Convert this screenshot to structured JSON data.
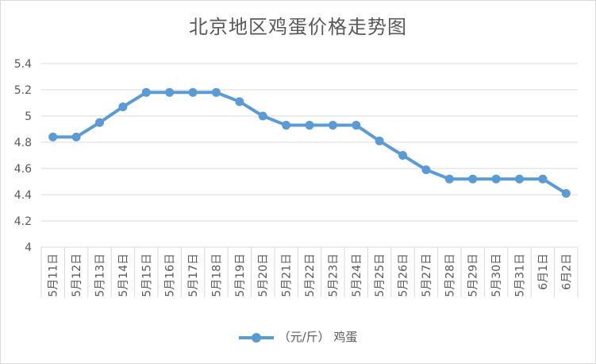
{
  "chart_data": {
    "type": "line",
    "title": "北京地区鸡蛋价格走势图",
    "categories": [
      "5月11日",
      "5月12日",
      "5月13日",
      "5月14日",
      "5月15日",
      "5月16日",
      "5月17日",
      "5月18日",
      "5月19日",
      "5月20日",
      "5月21日",
      "5月22日",
      "5月23日",
      "5月24日",
      "5月25日",
      "5月26日",
      "5月27日",
      "5月28日",
      "5月29日",
      "5月30日",
      "5月31日",
      "6月1日",
      "6月2日"
    ],
    "series": [
      {
        "name": "（元/斤） 鸡蛋",
        "values": [
          4.84,
          4.84,
          4.95,
          5.07,
          5.18,
          5.18,
          5.18,
          5.18,
          5.11,
          5.0,
          4.93,
          4.93,
          4.93,
          4.93,
          4.81,
          4.7,
          4.59,
          4.52,
          4.52,
          4.52,
          4.52,
          4.52,
          4.41
        ]
      }
    ],
    "ylim": [
      4,
      5.4
    ],
    "yticks": [
      "4",
      "4.2",
      "4.4",
      "4.6",
      "4.8",
      "5",
      "5.2",
      "5.4"
    ],
    "grid": true,
    "legend_position": "bottom",
    "color": "#5b9bd5"
  }
}
